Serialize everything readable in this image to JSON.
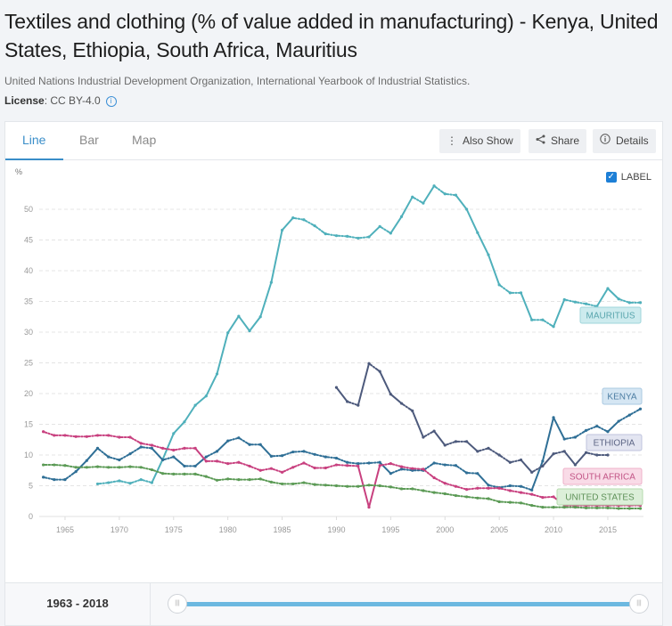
{
  "header": {
    "title": "Textiles and clothing (% of value added in manufacturing) - Kenya, United States, Ethiopia, South Africa, Mauritius",
    "source": "United Nations Industrial Development Organization, International Yearbook of Industrial Statistics.",
    "license_label": "License",
    "license_value": ": CC BY-4.0",
    "info_icon": "info-icon"
  },
  "tabs": [
    {
      "label": "Line",
      "active": true
    },
    {
      "label": "Bar",
      "active": false
    },
    {
      "label": "Map",
      "active": false
    }
  ],
  "toolbar": {
    "also_show": {
      "label": "Also Show",
      "icon": "vertical-dots-icon"
    },
    "share": {
      "label": "Share",
      "icon": "share-icon"
    },
    "details": {
      "label": "Details",
      "icon": "info-icon"
    }
  },
  "label_toggle": {
    "label": "LABEL",
    "checked": true
  },
  "footer": {
    "range_label": "1963 - 2018",
    "slider": {
      "min": 1963,
      "max": 2018,
      "start": 1963,
      "end": 2018,
      "handle_glyph": "|||"
    }
  },
  "chart_data": {
    "type": "line",
    "title": "Textiles and clothing (% of value added in manufacturing)",
    "xlabel": "",
    "ylabel": "%",
    "xlim": [
      1963,
      2018
    ],
    "ylim": [
      0,
      55
    ],
    "xticks": [
      1965,
      1970,
      1975,
      1980,
      1985,
      1990,
      1995,
      2000,
      2005,
      2010,
      2015
    ],
    "yticks": [
      0,
      5,
      10,
      15,
      20,
      25,
      30,
      35,
      40,
      45,
      50
    ],
    "grid": true,
    "legend": "inline-labels-right",
    "series": [
      {
        "name": "MAURITIUS",
        "color": "#4fb0bb",
        "label_bg": "#cdebee",
        "label_border": "#9fd5db",
        "label_color": "#5aa6ae",
        "start_year": 1968,
        "values": [
          5.3,
          5.5,
          5.8,
          5.4,
          6.0,
          5.5,
          9.3,
          13.5,
          15.4,
          18.1,
          19.6,
          23.2,
          29.9,
          32.6,
          30.2,
          32.5,
          38.1,
          46.6,
          48.6,
          48.3,
          47.3,
          46.0,
          45.7,
          45.6,
          45.3,
          45.5,
          47.2,
          46.1,
          48.8,
          52.0,
          51.0,
          53.8,
          52.5,
          52.3,
          50.0,
          46.2,
          42.6,
          37.7,
          36.4,
          36.4,
          32.0,
          32.0,
          30.9,
          35.3,
          34.9,
          34.6,
          34.2,
          37.1,
          35.4,
          34.8,
          34.8
        ]
      },
      {
        "name": "KENYA",
        "color": "#2f6f96",
        "label_bg": "#d5e6f3",
        "label_border": "#a9c9e2",
        "label_color": "#4d7ea3",
        "start_year": 1963,
        "values": [
          6.4,
          6.0,
          6.0,
          7.3,
          9.1,
          11.1,
          9.7,
          9.2,
          10.2,
          11.3,
          11.1,
          9.2,
          9.7,
          8.2,
          8.2,
          9.7,
          10.6,
          12.3,
          12.8,
          11.7,
          11.7,
          9.8,
          9.9,
          10.5,
          10.6,
          10.1,
          9.7,
          9.5,
          8.8,
          8.6,
          8.7,
          8.8,
          7.0,
          7.7,
          7.5,
          7.5,
          8.7,
          8.4,
          8.3,
          7.1,
          7.0,
          5.1,
          4.7,
          5.0,
          4.9,
          4.3,
          9.0,
          16.1,
          12.6,
          12.9,
          14.0,
          14.7,
          13.8,
          15.5,
          16.5,
          17.5
        ]
      },
      {
        "name": "ETHIOPIA",
        "color": "#4d5a7c",
        "label_bg": "#e3e5f1",
        "label_border": "#bfc3dd",
        "label_color": "#5c6585",
        "start_year": 1990,
        "values": [
          21.0,
          18.7,
          18.1,
          24.9,
          23.6,
          19.9,
          18.4,
          17.2,
          12.9,
          13.9,
          11.6,
          12.2,
          12.2,
          10.6,
          11.1,
          10.0,
          8.8,
          9.2,
          7.2,
          8.2,
          10.2,
          10.6,
          8.4,
          10.4,
          10.0,
          10.0
        ]
      },
      {
        "name": "SOUTH AFRICA",
        "color": "#c8407f",
        "label_bg": "#f9dbe7",
        "label_border": "#eeb0c9",
        "label_color": "#c25586",
        "start_year": 1963,
        "values": [
          13.8,
          13.2,
          13.2,
          13.0,
          13.0,
          13.2,
          13.2,
          12.9,
          12.9,
          11.9,
          11.6,
          11.1,
          10.8,
          11.1,
          11.1,
          9.0,
          9.0,
          8.6,
          8.8,
          8.2,
          7.5,
          7.8,
          7.2,
          8.0,
          8.7,
          7.9,
          7.9,
          8.4,
          8.3,
          8.2,
          1.5,
          8.3,
          8.6,
          8.1,
          7.8,
          7.7,
          6.3,
          5.4,
          4.9,
          4.4,
          4.6,
          4.6,
          4.6,
          4.2,
          3.9,
          3.6,
          3.1,
          3.2,
          1.8,
          1.8,
          1.8,
          1.8,
          1.8,
          1.8,
          1.8,
          1.8
        ]
      },
      {
        "name": "UNITED STATES",
        "color": "#5b9a55",
        "label_bg": "#dcefd9",
        "label_border": "#b5dbae",
        "label_color": "#5f9159",
        "start_year": 1963,
        "values": [
          8.4,
          8.4,
          8.3,
          8.0,
          8.0,
          8.1,
          8.0,
          8.0,
          8.1,
          8.0,
          7.6,
          7.0,
          6.9,
          6.9,
          6.9,
          6.5,
          5.9,
          6.1,
          6.0,
          6.0,
          6.1,
          5.6,
          5.3,
          5.3,
          5.5,
          5.2,
          5.1,
          5.0,
          4.9,
          4.9,
          5.1,
          5.0,
          4.8,
          4.5,
          4.5,
          4.2,
          3.9,
          3.7,
          3.4,
          3.2,
          3.0,
          2.9,
          2.4,
          2.3,
          2.2,
          1.8,
          1.5,
          1.5,
          1.5,
          1.5,
          1.4,
          1.4,
          1.4,
          1.3,
          1.3,
          1.3
        ]
      }
    ]
  }
}
